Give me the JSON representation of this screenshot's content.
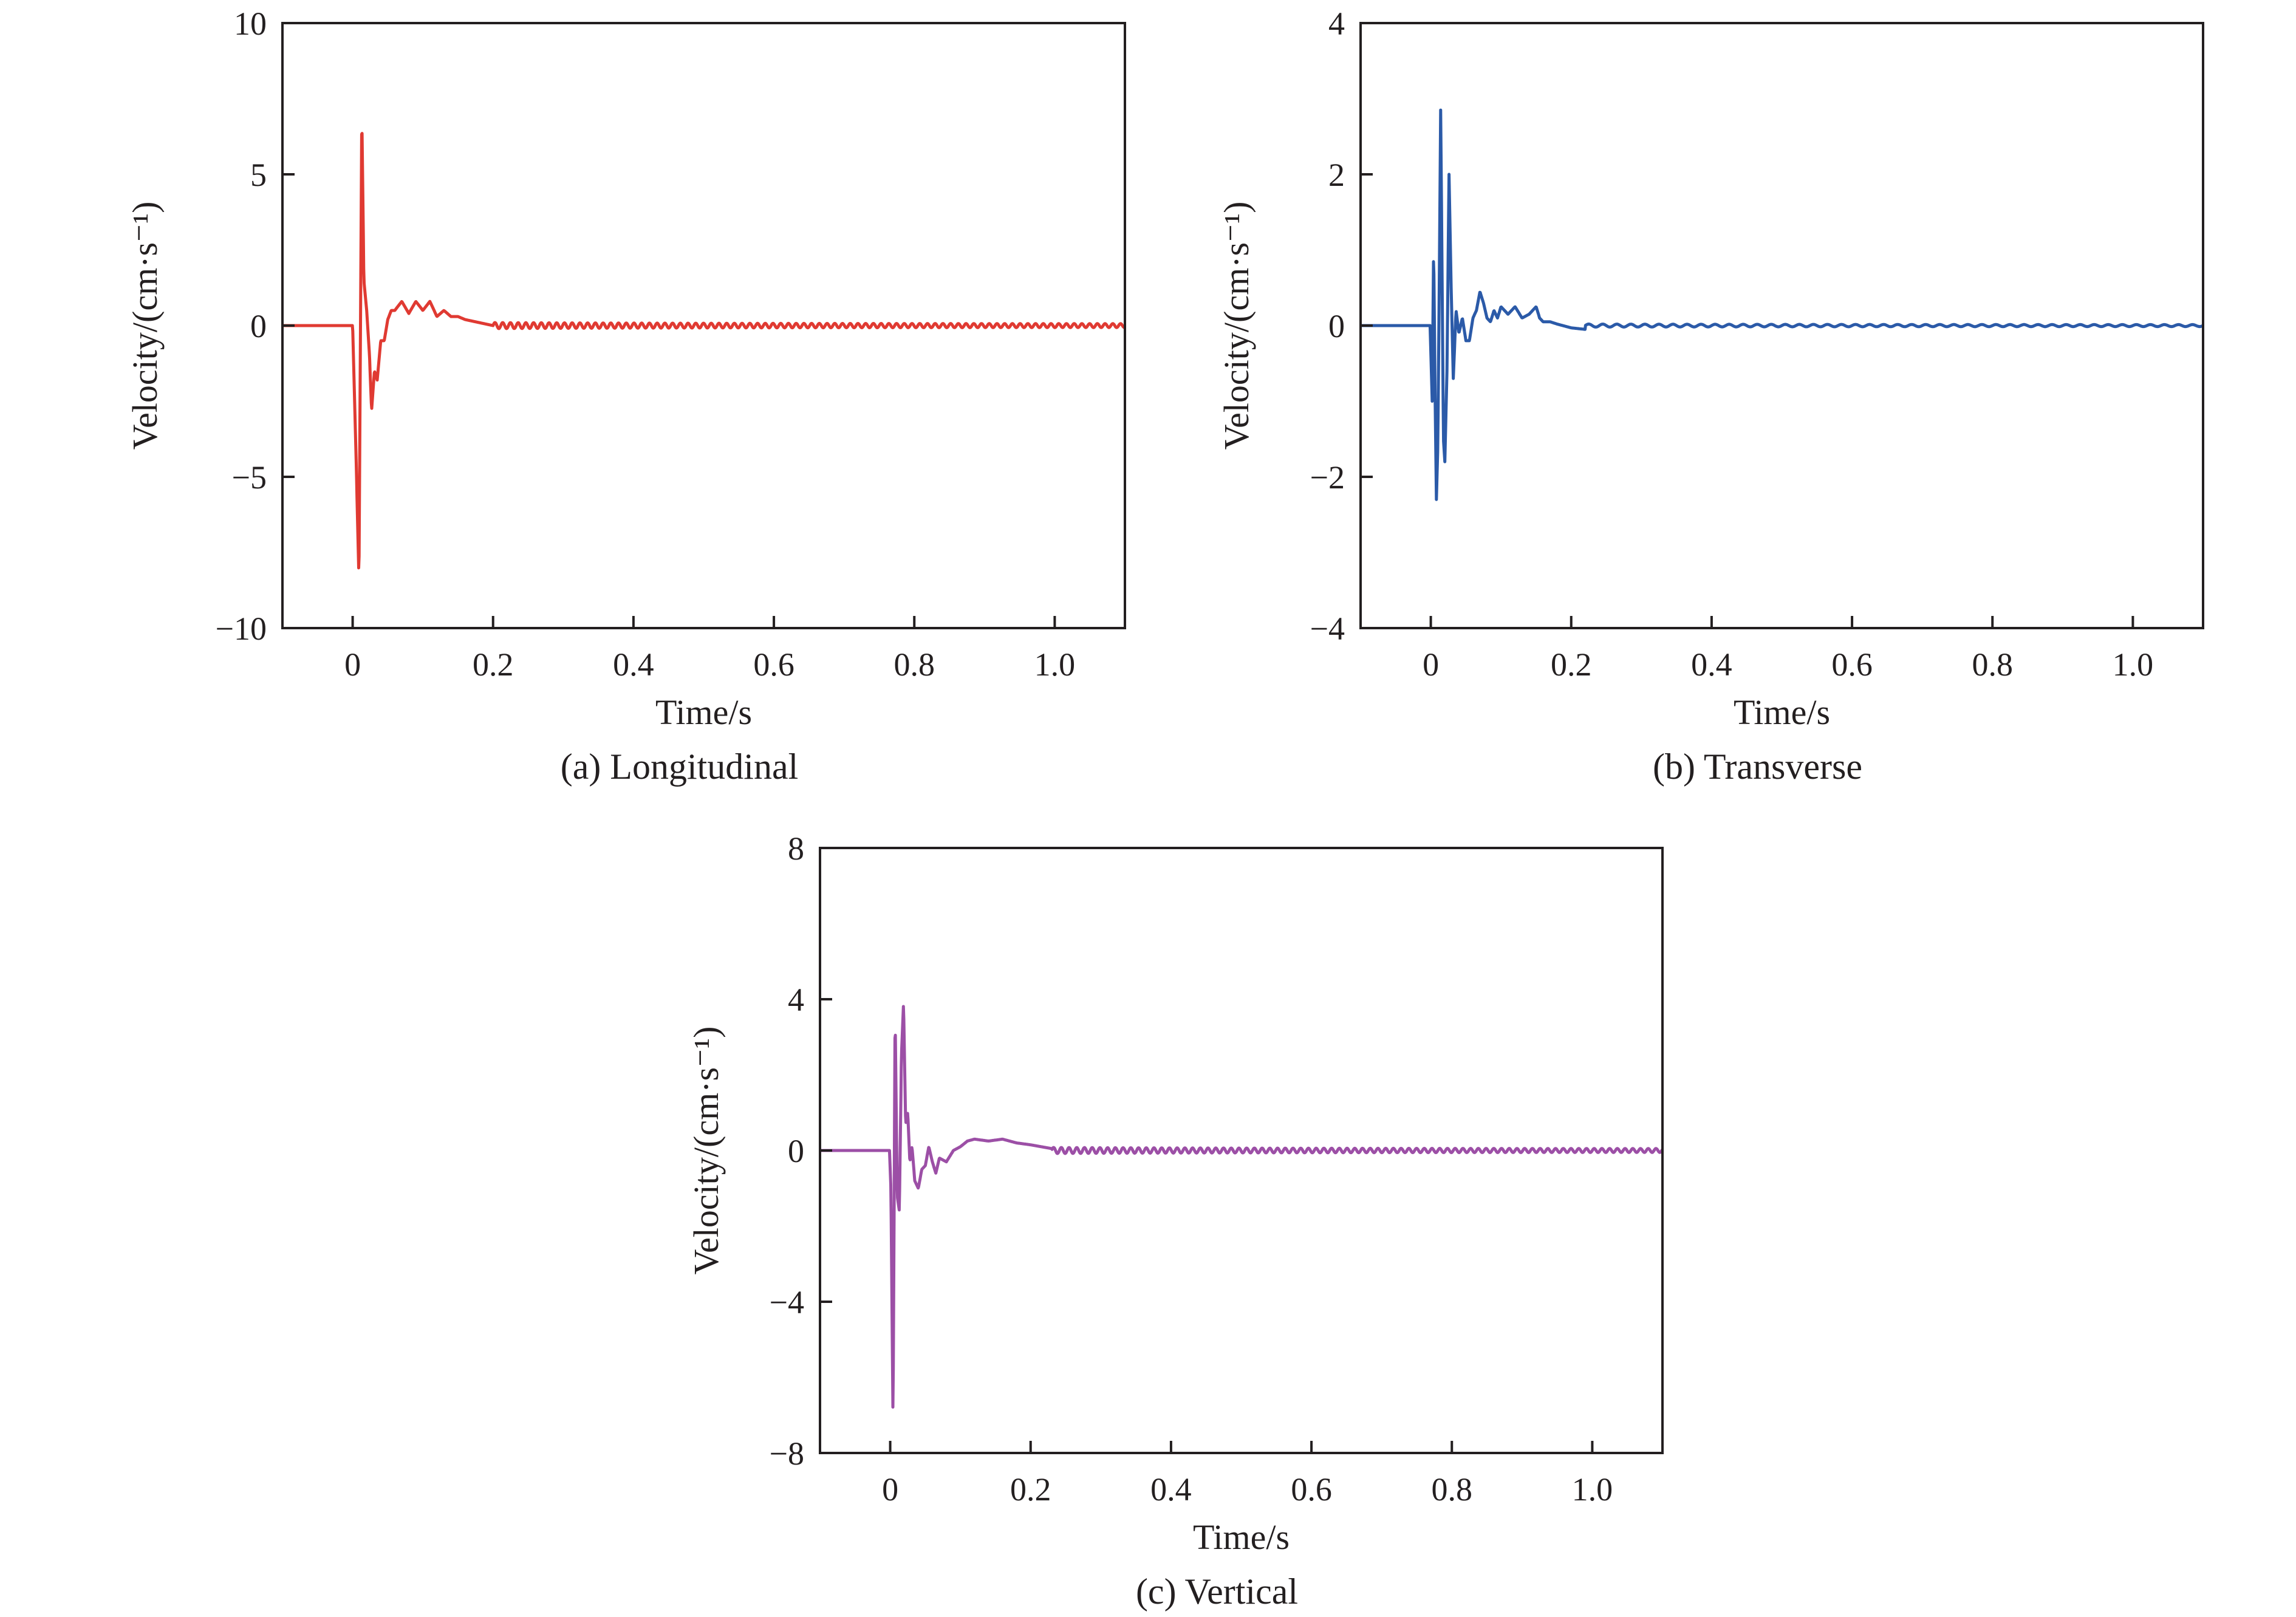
{
  "chart_data": [
    {
      "type": "line",
      "caption": "(a) Longitudinal",
      "xlabel": "Time/s",
      "ylabel": "Velocity/(cm·s⁻¹)",
      "xlim": [
        -0.1,
        1.1
      ],
      "ylim": [
        -10,
        10
      ],
      "xticks": [
        0,
        0.2,
        0.4,
        0.6,
        0.8,
        1.0
      ],
      "xtick_labels": [
        "0",
        "0.2",
        "0.4",
        "0.6",
        "0.8",
        "1.0"
      ],
      "yticks": [
        -10,
        -5,
        0,
        5,
        10
      ],
      "ytick_labels": [
        "−10",
        "−5",
        "0",
        "5",
        "10"
      ],
      "color": "#e03a32",
      "grid": false,
      "series": [
        {
          "x": [
            -0.1,
            -0.003,
            0.0,
            0.005,
            0.009,
            0.013,
            0.016,
            0.02,
            0.024,
            0.027,
            0.031,
            0.035,
            0.04,
            0.045,
            0.05,
            0.055,
            0.06,
            0.07,
            0.08,
            0.09,
            0.1,
            0.11,
            0.12,
            0.13,
            0.14,
            0.15,
            0.16,
            0.18,
            0.2
          ],
          "y": [
            0,
            0,
            0,
            -4.5,
            -8.4,
            7.1,
            1.5,
            0.5,
            -1.0,
            -2.8,
            -1.5,
            -1.8,
            -0.5,
            -0.5,
            0.2,
            0.5,
            0.5,
            0.8,
            0.4,
            0.8,
            0.5,
            0.8,
            0.3,
            0.5,
            0.3,
            0.3,
            0.2,
            0.1,
            0
          ],
          "oscillation_amplitude": 0.1,
          "oscillation_period": 0.011
        }
      ]
    },
    {
      "type": "line",
      "caption": "(b) Transverse",
      "xlabel": "Time/s",
      "ylabel": "Velocity/(cm·s⁻¹)",
      "xlim": [
        -0.1,
        1.1
      ],
      "ylim": [
        -4,
        4
      ],
      "xticks": [
        0,
        0.2,
        0.4,
        0.6,
        0.8,
        1.0
      ],
      "xtick_labels": [
        "0",
        "0.2",
        "0.4",
        "0.6",
        "0.8",
        "1.0"
      ],
      "yticks": [
        -4,
        -2,
        0,
        2,
        4
      ],
      "ytick_labels": [
        "−4",
        "−2",
        "0",
        "2",
        "4"
      ],
      "color": "#2b5aa8",
      "grid": false,
      "series": [
        {
          "x": [
            -0.1,
            -0.001,
            0.002,
            0.004,
            0.006,
            0.008,
            0.01,
            0.012,
            0.014,
            0.016,
            0.018,
            0.02,
            0.023,
            0.026,
            0.029,
            0.032,
            0.036,
            0.04,
            0.045,
            0.05,
            0.055,
            0.06,
            0.065,
            0.07,
            0.075,
            0.08,
            0.085,
            0.09,
            0.095,
            0.1,
            0.11,
            0.12,
            0.13,
            0.14,
            0.15,
            0.155,
            0.16,
            0.17,
            0.18,
            0.2,
            0.22
          ],
          "y": [
            0,
            0,
            -1.0,
            1.05,
            -0.8,
            -2.3,
            -1.6,
            0.5,
            2.85,
            0.8,
            -1.5,
            -1.8,
            -0.6,
            2.0,
            0.5,
            -0.7,
            0.2,
            -0.1,
            0.1,
            -0.2,
            -0.2,
            0.1,
            0.2,
            0.45,
            0.3,
            0.1,
            0.05,
            0.2,
            0.1,
            0.25,
            0.15,
            0.25,
            0.1,
            0.15,
            0.25,
            0.1,
            0.05,
            0.05,
            0.02,
            -0.03,
            -0.05
          ],
          "oscillation_amplitude": 0.02,
          "oscillation_period": 0.02
        }
      ]
    },
    {
      "type": "line",
      "caption": "(c) Vertical",
      "xlabel": "Time/s",
      "ylabel": "Velocity/(cm·s⁻¹)",
      "xlim": [
        -0.1,
        1.1
      ],
      "ylim": [
        -8,
        8
      ],
      "xticks": [
        0,
        0.2,
        0.4,
        0.6,
        0.8,
        1.0
      ],
      "xtick_labels": [
        "0",
        "0.2",
        "0.4",
        "0.6",
        "0.8",
        "1.0"
      ],
      "yticks": [
        -8,
        -4,
        0,
        4,
        8
      ],
      "ytick_labels": [
        "−8",
        "−4",
        "0",
        "4",
        "8"
      ],
      "color": "#9c4fa6",
      "grid": false,
      "series": [
        {
          "x": [
            -0.1,
            -0.001,
            0.001,
            0.004,
            0.007,
            0.01,
            0.013,
            0.016,
            0.019,
            0.022,
            0.025,
            0.028,
            0.031,
            0.035,
            0.04,
            0.045,
            0.05,
            0.055,
            0.06,
            0.065,
            0.07,
            0.08,
            0.09,
            0.1,
            0.11,
            0.12,
            0.14,
            0.16,
            0.18,
            0.2,
            0.23
          ],
          "y": [
            0,
            0,
            -1.0,
            -7.2,
            3.7,
            -1.2,
            -1.6,
            2.5,
            3.9,
            0.7,
            1.0,
            -0.3,
            0.1,
            -0.8,
            -1.0,
            -0.5,
            -0.4,
            0.1,
            -0.3,
            -0.6,
            -0.2,
            -0.3,
            0.0,
            0.1,
            0.25,
            0.3,
            0.25,
            0.3,
            0.2,
            0.15,
            0.05
          ],
          "oscillation_amplitude": 0.08,
          "oscillation_period": 0.011
        }
      ]
    }
  ]
}
